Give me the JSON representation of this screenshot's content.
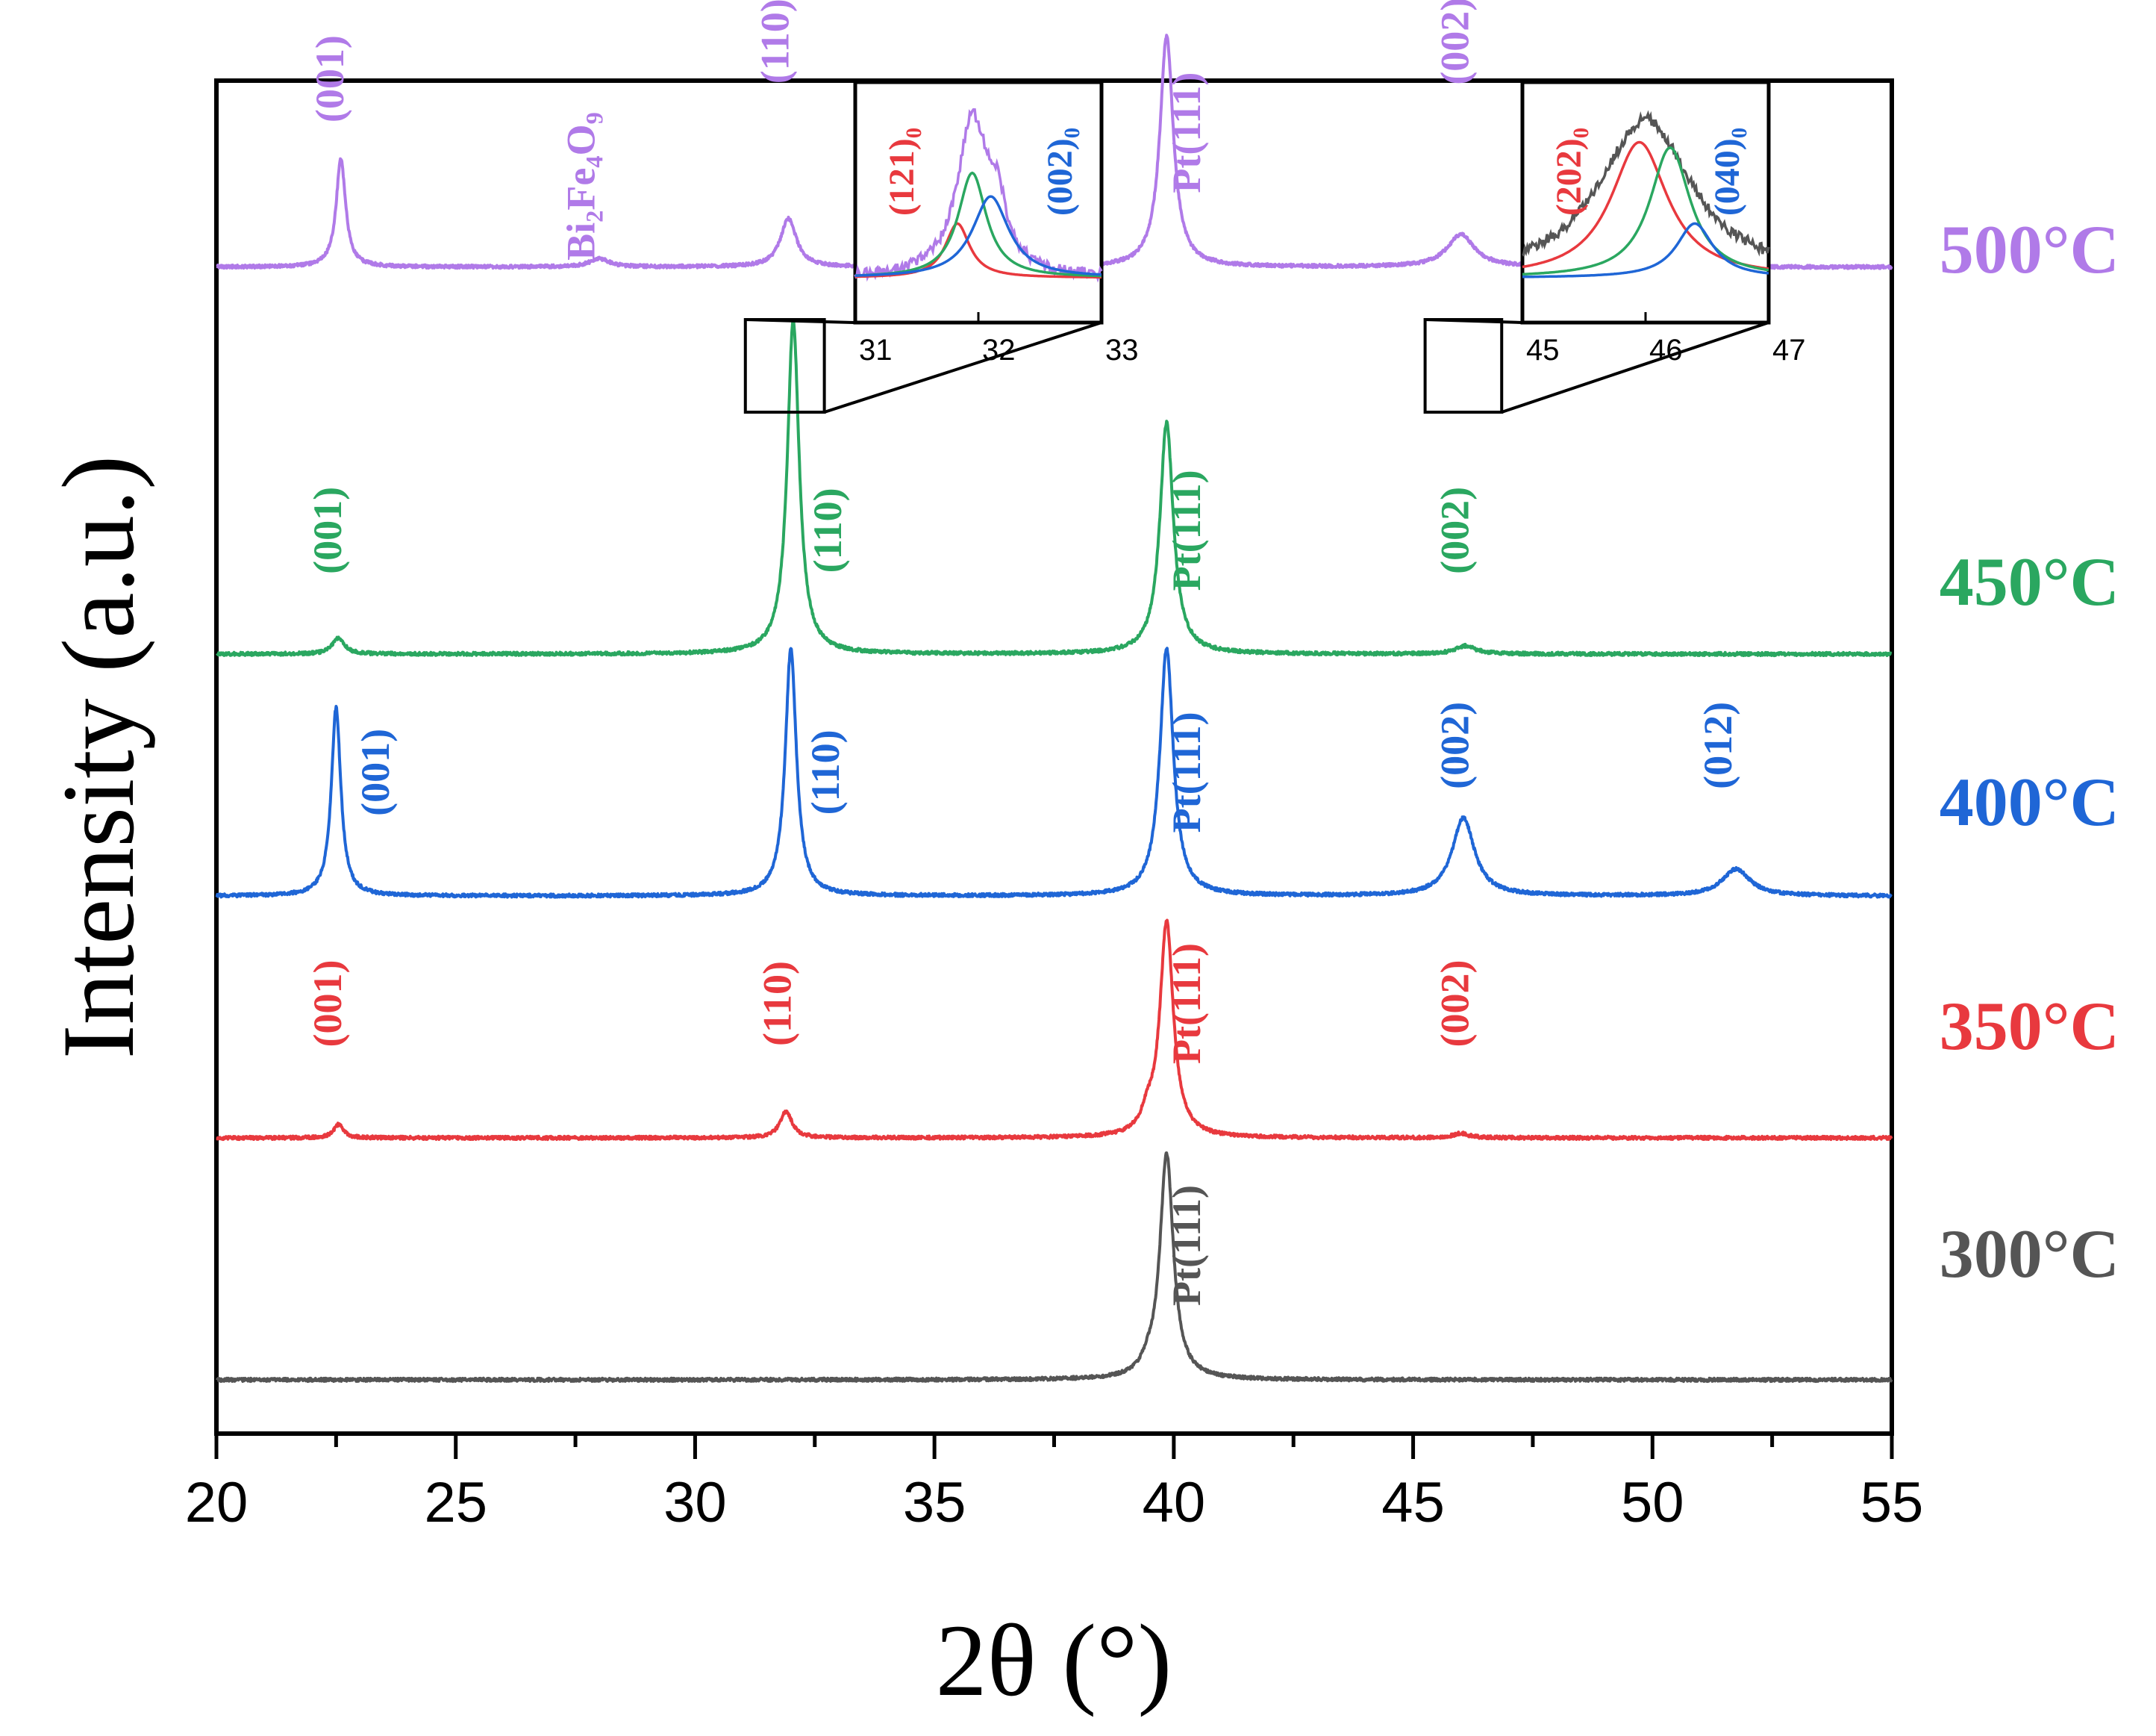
{
  "chart_data": {
    "type": "line",
    "xlabel": "2θ (°)",
    "ylabel": "Intensity (a.u.)",
    "xlim": [
      20,
      55
    ],
    "xticks": [
      20,
      25,
      30,
      35,
      40,
      45,
      50,
      55
    ],
    "yticks_shown": false,
    "series": [
      {
        "name": "300°C",
        "color": "#555555",
        "baseline": 0,
        "peaks": [
          {
            "x": 39.85,
            "h": 4.2,
            "w": 0.17
          },
          {
            "x": 39.45,
            "h": 0.15,
            "w": 0.15
          }
        ],
        "labels": [
          {
            "text": "Pt(111)",
            "x": 40.55,
            "y": 2.5
          }
        ]
      },
      {
        "name": "350°C",
        "color": "#e8393e",
        "baseline": 4.5,
        "peaks": [
          {
            "x": 22.55,
            "h": 0.25,
            "w": 0.12
          },
          {
            "x": 31.9,
            "h": 0.5,
            "w": 0.15
          },
          {
            "x": 39.85,
            "h": 4.0,
            "w": 0.17
          },
          {
            "x": 39.45,
            "h": 0.3,
            "w": 0.15
          },
          {
            "x": 46.0,
            "h": 0.08,
            "w": 0.2
          }
        ],
        "labels": [
          {
            "text": "(001)",
            "x": 22.6,
            "y": 2.5
          },
          {
            "text": "(110)",
            "x": 32.0,
            "y": 2.5
          },
          {
            "text": "Pt(111)",
            "x": 40.55,
            "y": 2.5
          },
          {
            "text": "(002)",
            "x": 46.15,
            "y": 2.5
          }
        ]
      },
      {
        "name": "400°C",
        "color": "#1f66d6",
        "baseline": 9.0,
        "peaks": [
          {
            "x": 22.5,
            "h": 3.5,
            "w": 0.12
          },
          {
            "x": 32.0,
            "h": 4.6,
            "w": 0.14
          },
          {
            "x": 39.85,
            "h": 4.6,
            "w": 0.17
          },
          {
            "x": 46.05,
            "h": 1.45,
            "w": 0.28
          },
          {
            "x": 51.75,
            "h": 0.5,
            "w": 0.35
          }
        ],
        "labels": [
          {
            "text": "(001)",
            "x": 23.6,
            "y": 2.3
          },
          {
            "text": "(110)",
            "x": 33.0,
            "y": 2.3
          },
          {
            "text": "Pt(111)",
            "x": 40.55,
            "y": 2.3
          },
          {
            "text": "(002)",
            "x": 46.15,
            "y": 2.8
          },
          {
            "text": "(012)",
            "x": 51.65,
            "y": 2.8
          }
        ]
      },
      {
        "name": "450°C",
        "color": "#2aa760",
        "baseline": 13.5,
        "peaks": [
          {
            "x": 22.55,
            "h": 0.3,
            "w": 0.15
          },
          {
            "x": 32.05,
            "h": 6.2,
            "w": 0.15
          },
          {
            "x": 39.85,
            "h": 4.3,
            "w": 0.17
          },
          {
            "x": 46.1,
            "h": 0.15,
            "w": 0.25
          }
        ],
        "labels": [
          {
            "text": "(001)",
            "x": 22.6,
            "y": 2.3
          },
          {
            "text": "(110)",
            "x": 33.05,
            "y": 2.3
          },
          {
            "text": "Pt(111)",
            "x": 40.55,
            "y": 2.3
          },
          {
            "text": "(002)",
            "x": 46.15,
            "y": 2.3
          }
        ]
      },
      {
        "name": "500°C",
        "color": "#b07ae8",
        "baseline": 20.7,
        "peaks": [
          {
            "x": 22.6,
            "h": 2.0,
            "w": 0.12
          },
          {
            "x": 28.0,
            "h": 0.15,
            "w": 0.25
          },
          {
            "x": 31.95,
            "h": 0.9,
            "w": 0.2
          },
          {
            "x": 39.85,
            "h": 4.3,
            "w": 0.17
          },
          {
            "x": 46.0,
            "h": 0.6,
            "w": 0.35
          }
        ],
        "labels": [
          {
            "text": "(001)",
            "x": 22.65,
            "y": 3.5
          },
          {
            "text": "Bi₂Fe₄O₉",
            "x": 27.9,
            "y": 1.5
          },
          {
            "text": "(110)",
            "x": 31.95,
            "y": 4.2
          },
          {
            "text": "Pt(111)",
            "x": 40.55,
            "y": 2.5
          },
          {
            "text": "(002)",
            "x": 46.15,
            "y": 4.2
          }
        ]
      }
    ],
    "insets": [
      {
        "name": "inset-110",
        "xlim": [
          31,
          33
        ],
        "xticks": [
          31,
          32,
          33
        ],
        "zoom_box": {
          "x0": 31.05,
          "x1": 32.7
        },
        "labels": [
          {
            "text": "(121)₀",
            "color": "#e8393e"
          },
          {
            "text": "(002)₀",
            "color": "#1f66d6"
          }
        ],
        "curves": [
          {
            "name": "data",
            "color": "#b07ae8",
            "peaks": [
              {
                "x": 31.95,
                "h": 0.85,
                "w": 0.15
              },
              {
                "x": 32.15,
                "h": 0.3,
                "w": 0.1
              }
            ]
          },
          {
            "name": "fit-121",
            "color": "#e8393e",
            "peaks": [
              {
                "x": 31.83,
                "h": 0.3,
                "w": 0.12
              }
            ]
          },
          {
            "name": "fit-sum",
            "color": "#2aa760",
            "peaks": [
              {
                "x": 31.95,
                "h": 0.58,
                "w": 0.14
              }
            ]
          },
          {
            "name": "fit-002",
            "color": "#1f66d6",
            "peaks": [
              {
                "x": 32.1,
                "h": 0.45,
                "w": 0.18
              }
            ]
          }
        ]
      },
      {
        "name": "inset-002",
        "xlim": [
          45,
          47
        ],
        "xticks": [
          45,
          46,
          47
        ],
        "zoom_box": {
          "x0": 45.25,
          "x1": 46.85
        },
        "labels": [
          {
            "text": "(202)₀",
            "color": "#e8393e"
          },
          {
            "text": "(040)₀",
            "color": "#1f66d6"
          }
        ],
        "curves": [
          {
            "name": "data",
            "color": "#555555",
            "peaks": [
              {
                "x": 46.0,
                "h": 0.88,
                "w": 0.45
              }
            ]
          },
          {
            "name": "fit-202",
            "color": "#e8393e",
            "peaks": [
              {
                "x": 45.95,
                "h": 0.75,
                "w": 0.28
              }
            ]
          },
          {
            "name": "fit-sum",
            "color": "#2aa760",
            "peaks": [
              {
                "x": 46.2,
                "h": 0.72,
                "w": 0.2
              }
            ]
          },
          {
            "name": "fit-040",
            "color": "#1f66d6",
            "peaks": [
              {
                "x": 46.4,
                "h": 0.3,
                "w": 0.18
              }
            ]
          }
        ]
      }
    ]
  }
}
